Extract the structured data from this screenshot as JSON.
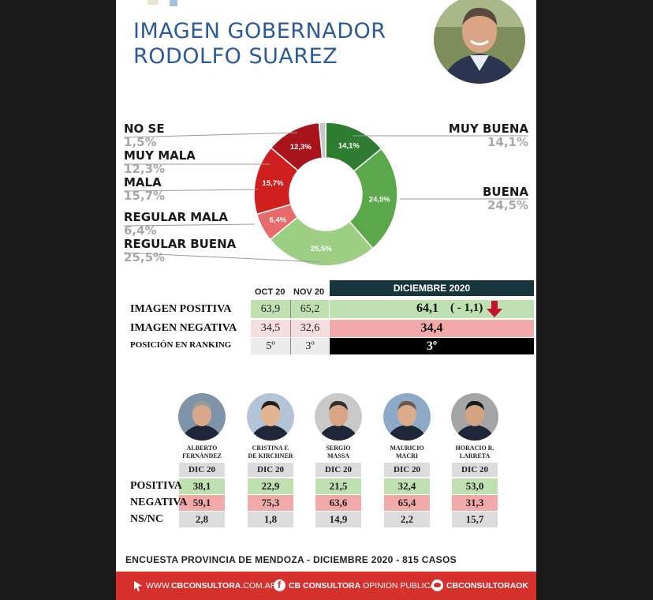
{
  "title": {
    "line1": "IMAGEN GOBERNADOR",
    "line2": "RODOLFO SUAREZ"
  },
  "chart_data": {
    "type": "pie",
    "slices": [
      {
        "name": "MUY BUENA",
        "value": 14.1,
        "label": "14,1%",
        "color": "#2e7d32"
      },
      {
        "name": "BUENA",
        "value": 24.5,
        "label": "24,5%",
        "color": "#5ba84a"
      },
      {
        "name": "REGULAR BUENA",
        "value": 25.5,
        "label": "25,5%",
        "color": "#9ccf84"
      },
      {
        "name": "REGULAR MALA",
        "value": 6.4,
        "label": "6,4%",
        "color": "#e86a6a"
      },
      {
        "name": "MALA",
        "value": 15.7,
        "label": "15,7%",
        "color": "#d01f1f"
      },
      {
        "name": "MUY MALA",
        "value": 12.3,
        "label": "12,3%",
        "color": "#a8141c"
      },
      {
        "name": "NO SE",
        "value": 1.5,
        "label": "",
        "color": "#c8c8c8"
      }
    ]
  },
  "legend": {
    "no_se": {
      "name": "NO SE",
      "value": "1,5%"
    },
    "muy_mala": {
      "name": "MUY MALA",
      "value": "12,3%"
    },
    "mala": {
      "name": "MALA",
      "value": "15,7%"
    },
    "regular_mala": {
      "name": "REGULAR MALA",
      "value": "6,4%"
    },
    "regular_buena": {
      "name": "REGULAR BUENA",
      "value": "25,5%"
    },
    "muy_buena": {
      "name": "MUY BUENA",
      "value": "14,1%"
    },
    "buena": {
      "name": "BUENA",
      "value": "24,5%"
    }
  },
  "table": {
    "col_oct": "OCT 20",
    "col_nov": "NOV 20",
    "col_dec": "DICIEMBRE 2020",
    "rows": [
      {
        "label": "IMAGEN POSITIVA",
        "oct": "63,9",
        "nov": "65,2",
        "dec": "64,1",
        "change": "( - 1,1)"
      },
      {
        "label": "IMAGEN NEGATIVA",
        "oct": "34,5",
        "nov": "32,6",
        "dec": "34,4"
      },
      {
        "label": "POSICIÓN EN RANKING",
        "oct": "5º",
        "nov": "3º",
        "dec": "3º"
      }
    ]
  },
  "politicians": {
    "row_labels": {
      "positiva": "POSITIVA",
      "negativa": "NEGATIVA",
      "nsnc": "NS/NC"
    },
    "col_header": "DIC 20",
    "list": [
      {
        "name1": "ALBERTO",
        "name2": "FERNÁNDEZ",
        "positiva": "38,1",
        "negativa": "59,1",
        "nsnc": "2,8"
      },
      {
        "name1": "CRISTINA F.",
        "name2": "DE KIRCHNER",
        "positiva": "22,9",
        "negativa": "75,3",
        "nsnc": "1,8"
      },
      {
        "name1": "SERGIO",
        "name2": "MASSA",
        "positiva": "21,5",
        "negativa": "63,6",
        "nsnc": "14,9"
      },
      {
        "name1": "MAURICIO",
        "name2": "MACRI",
        "positiva": "32,4",
        "negativa": "65,4",
        "nsnc": "2,2"
      },
      {
        "name1": "HORACIO R.",
        "name2": "LARRETA",
        "positiva": "53,0",
        "negativa": "31,3",
        "nsnc": "15,7"
      }
    ]
  },
  "footer": {
    "survey": "ENCUESTA PROVINCIA DE MENDOZA - DICIEMBRE 2020 -  815 CASOS",
    "web_prefix": "WWW.",
    "web_brand": "CBCONSULTORA",
    "web_suffix": ".COM.AR",
    "fb_brand": "CB CONSULTORA",
    "fb_suffix": " OPINION PUBLICA",
    "tw": "CBCONSULTORAOK"
  },
  "colors": {
    "green_cell": "#bfe0b0",
    "red_cell": "#f2a9a9",
    "gray_cell": "#dcdcdc",
    "dark_header": "#17363c",
    "title_blue": "#2a5a9a"
  }
}
